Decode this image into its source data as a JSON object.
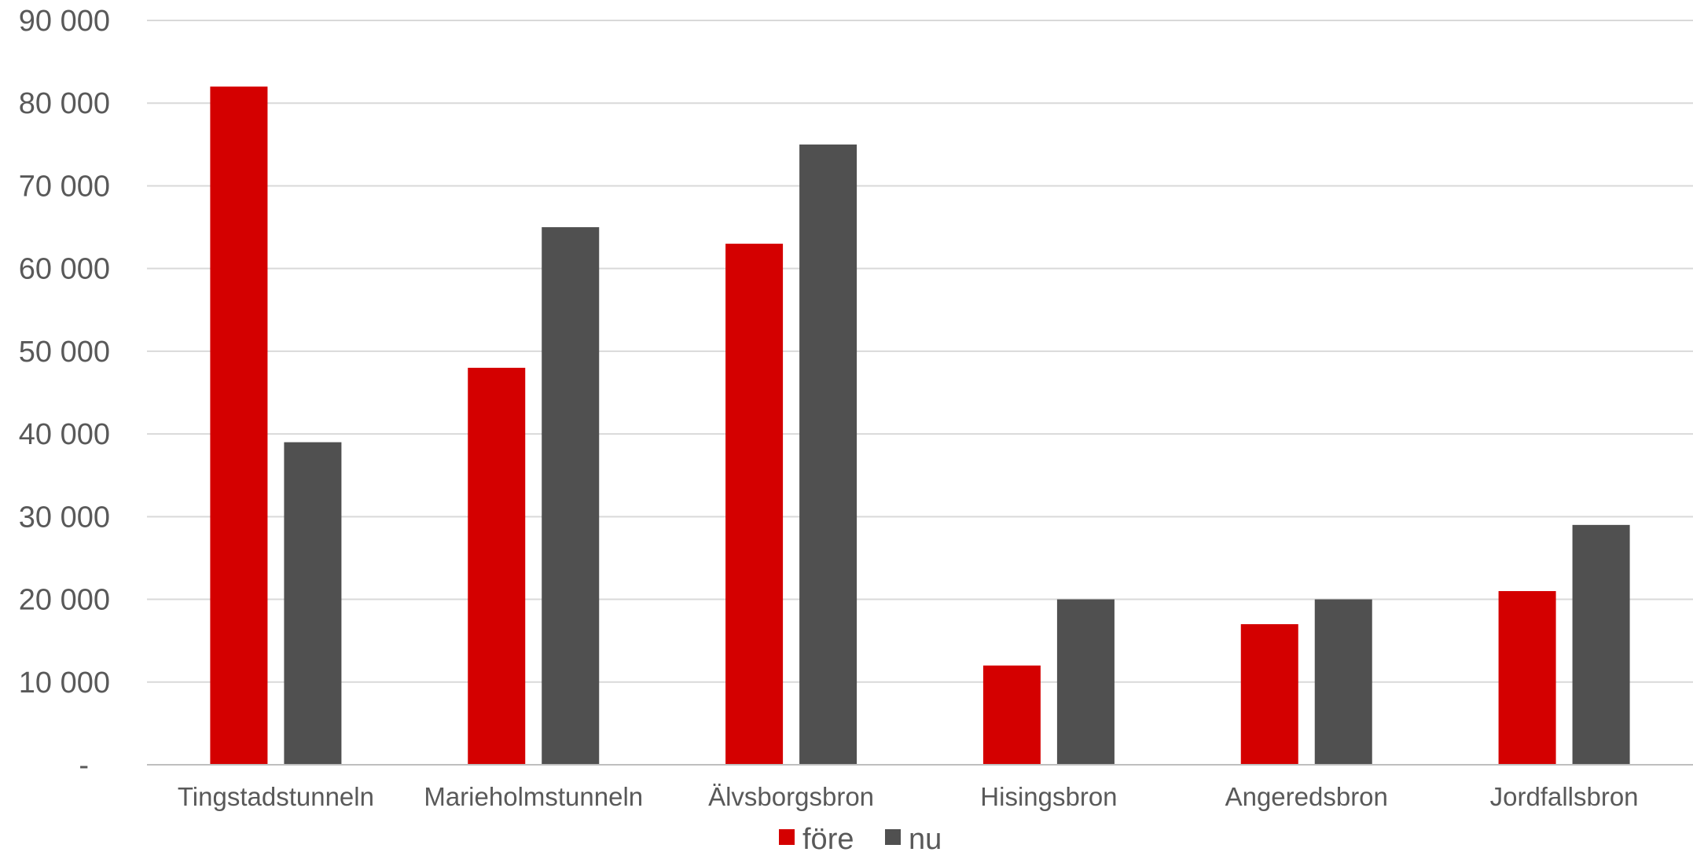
{
  "chart_data": {
    "type": "bar",
    "title": "",
    "xlabel": "",
    "ylabel": "",
    "categories": [
      "Tingstadstunneln",
      "Marieholmstunneln",
      "Älvsborgsbron",
      "Hisingsbron",
      "Angeredsbron",
      "Jordfallsbron"
    ],
    "series": [
      {
        "name": "före",
        "color": "#d40000",
        "values": [
          82000,
          48000,
          63000,
          12000,
          17000,
          21000
        ]
      },
      {
        "name": "nu",
        "color": "#505050",
        "values": [
          39000,
          65000,
          75000,
          20000,
          20000,
          29000
        ]
      }
    ],
    "ylim": [
      0,
      90000
    ],
    "yticks": [
      {
        "value": 0,
        "label": "-"
      },
      {
        "value": 10000,
        "label": "10 000"
      },
      {
        "value": 20000,
        "label": "20 000"
      },
      {
        "value": 30000,
        "label": "30 000"
      },
      {
        "value": 40000,
        "label": "40 000"
      },
      {
        "value": 50000,
        "label": "50 000"
      },
      {
        "value": 60000,
        "label": "60 000"
      },
      {
        "value": 70000,
        "label": "70 000"
      },
      {
        "value": 80000,
        "label": "80 000"
      },
      {
        "value": 90000,
        "label": "90 000"
      }
    ],
    "grid": true,
    "legend": {
      "position": "bottom"
    }
  }
}
